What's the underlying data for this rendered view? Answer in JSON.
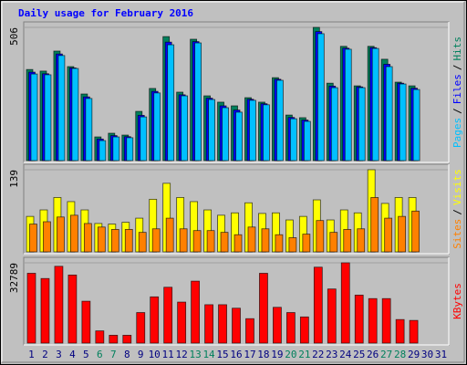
{
  "chart_data": [
    {
      "type": "bar",
      "title": "Daily usage for February 2016",
      "categories": [
        1,
        2,
        3,
        4,
        5,
        6,
        7,
        8,
        9,
        10,
        11,
        12,
        13,
        14,
        15,
        16,
        17,
        18,
        19,
        20,
        21,
        22,
        23,
        24,
        25,
        26,
        27,
        28,
        29,
        30,
        31
      ],
      "legend_separator": "/",
      "series": [
        {
          "name": "Hits",
          "color": "#00805c",
          "values": [
            346,
            340,
            416,
            357,
            253,
            90,
            104,
            97,
            187,
            274,
            471,
            260,
            461,
            246,
            222,
            208,
            239,
            222,
            315,
            173,
            163,
            506,
            294,
            434,
            284,
            434,
            385,
            298,
            284,
            null,
            null
          ]
        },
        {
          "name": "Files",
          "color": "#0000ff",
          "values": [
            336,
            330,
            405,
            352,
            242,
            82,
            95,
            91,
            172,
            263,
            450,
            250,
            452,
            237,
            208,
            192,
            233,
            216,
            309,
            164,
            154,
            490,
            283,
            427,
            280,
            429,
            366,
            294,
            275,
            null,
            null
          ]
        },
        {
          "name": "Pages",
          "color": "#00c0ff",
          "values": [
            329,
            326,
            399,
            350,
            236,
            76,
            90,
            87,
            166,
            257,
            440,
            246,
            447,
            232,
            201,
            184,
            229,
            212,
            305,
            159,
            149,
            482,
            277,
            423,
            277,
            426,
            357,
            291,
            270,
            null,
            null
          ]
        }
      ],
      "ylim": [
        0,
        506
      ],
      "yticks": [
        506
      ]
    },
    {
      "type": "bar",
      "categories": [
        1,
        2,
        3,
        4,
        5,
        6,
        7,
        8,
        9,
        10,
        11,
        12,
        13,
        14,
        15,
        16,
        17,
        18,
        19,
        20,
        21,
        22,
        23,
        24,
        25,
        26,
        27,
        28,
        29,
        30,
        31
      ],
      "legend_separator": "/",
      "series": [
        {
          "name": "Visits",
          "color": "#ffff00",
          "values": [
            60,
            71,
            92,
            85,
            71,
            48,
            47,
            50,
            57,
            89,
            116,
            92,
            85,
            71,
            62,
            66,
            83,
            65,
            66,
            54,
            60,
            88,
            54,
            71,
            66,
            139,
            82,
            92,
            92,
            null,
            null
          ]
        },
        {
          "name": "Sites",
          "color": "#ff8000",
          "values": [
            47,
            51,
            59,
            62,
            48,
            42,
            38,
            38,
            33,
            39,
            57,
            39,
            36,
            36,
            33,
            29,
            42,
            39,
            29,
            24,
            30,
            53,
            33,
            38,
            39,
            92,
            57,
            60,
            69,
            null,
            null
          ]
        }
      ],
      "ylim": [
        0,
        139
      ],
      "yticks": [
        139
      ]
    },
    {
      "type": "bar",
      "categories": [
        1,
        2,
        3,
        4,
        5,
        6,
        7,
        8,
        9,
        10,
        11,
        12,
        13,
        14,
        15,
        16,
        17,
        18,
        19,
        20,
        21,
        22,
        23,
        24,
        25,
        26,
        27,
        28,
        29,
        30,
        31
      ],
      "category_colors": [
        "#000080",
        "#000080",
        "#000080",
        "#000080",
        "#000080",
        "#00805c",
        "#00805c",
        "#000080",
        "#000080",
        "#000080",
        "#000080",
        "#000080",
        "#00805c",
        "#00805c",
        "#000080",
        "#000080",
        "#000080",
        "#000080",
        "#000080",
        "#00805c",
        "#00805c",
        "#000080",
        "#000080",
        "#000080",
        "#000080",
        "#000080",
        "#00805c",
        "#00805c",
        "#000080",
        "#000080",
        "#000080"
      ],
      "series": [
        {
          "name": "KBytes",
          "color": "#ff0000",
          "values": [
            28512,
            26374,
            31364,
            27799,
            17107,
            4990,
            3208,
            3208,
            12474,
            18889,
            22810,
            16751,
            25304,
            15681,
            15681,
            14256,
            9979,
            28512,
            14612,
            12474,
            10692,
            31007,
            22097,
            32789,
            19602,
            18176,
            18176,
            9623,
            9267,
            null,
            null
          ]
        }
      ],
      "ylim": [
        0,
        32789
      ],
      "yticks": [
        32789
      ]
    }
  ]
}
